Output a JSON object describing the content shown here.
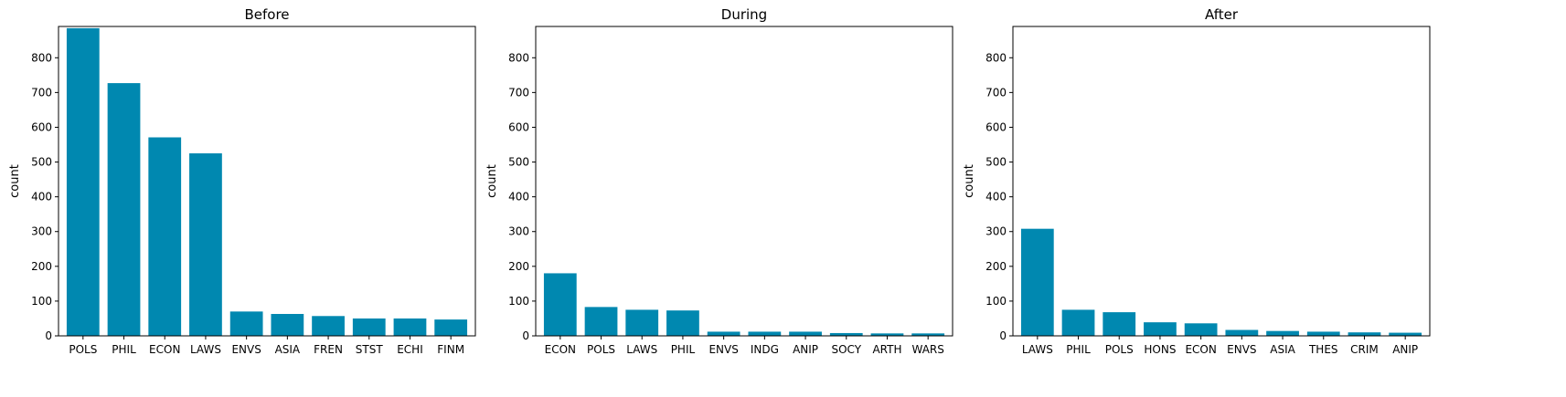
{
  "chart_data": [
    {
      "type": "bar",
      "title": "Before",
      "xlabel": "",
      "ylabel": "count",
      "ylim": [
        0,
        890
      ],
      "yticks": [
        0,
        100,
        200,
        300,
        400,
        500,
        600,
        700,
        800
      ],
      "color": "#0088b0",
      "categories": [
        "POLS",
        "PHIL",
        "ECON",
        "LAWS",
        "ENVS",
        "ASIA",
        "FREN",
        "STST",
        "ECHI",
        "FINM"
      ],
      "values": [
        885,
        727,
        571,
        525,
        70,
        63,
        57,
        50,
        50,
        47
      ]
    },
    {
      "type": "bar",
      "title": "During",
      "xlabel": "",
      "ylabel": "count",
      "ylim": [
        0,
        890
      ],
      "yticks": [
        0,
        100,
        200,
        300,
        400,
        500,
        600,
        700,
        800
      ],
      "color": "#0088b0",
      "categories": [
        "ECON",
        "POLS",
        "LAWS",
        "PHIL",
        "ENVS",
        "INDG",
        "ANIP",
        "SOCY",
        "ARTH",
        "WARS"
      ],
      "values": [
        180,
        83,
        75,
        73,
        12,
        12,
        12,
        8,
        7,
        7
      ]
    },
    {
      "type": "bar",
      "title": "After",
      "xlabel": "",
      "ylabel": "count",
      "ylim": [
        0,
        890
      ],
      "yticks": [
        0,
        100,
        200,
        300,
        400,
        500,
        600,
        700,
        800
      ],
      "color": "#0088b0",
      "categories": [
        "LAWS",
        "PHIL",
        "POLS",
        "HONS",
        "ECON",
        "ENVS",
        "ASIA",
        "THES",
        "CRIM",
        "ANIP"
      ],
      "values": [
        308,
        75,
        68,
        39,
        36,
        17,
        14,
        12,
        10,
        9
      ]
    }
  ]
}
